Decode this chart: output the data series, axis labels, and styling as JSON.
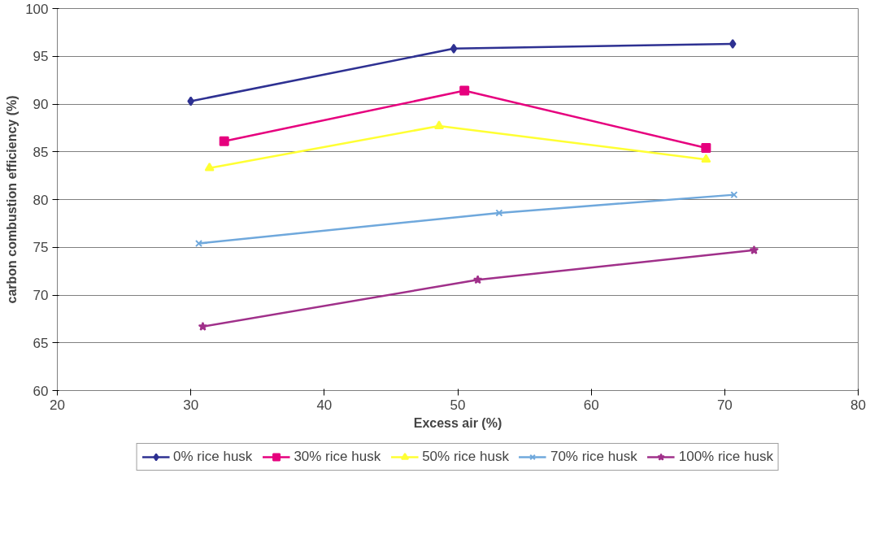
{
  "chart_data": {
    "type": "line",
    "xlabel": "Excess air (%)",
    "ylabel": "carbon combustion efficiency (%)",
    "xlim": [
      20,
      80
    ],
    "xticks": [
      20,
      30,
      40,
      50,
      60,
      70,
      80
    ],
    "ylim": [
      60,
      100
    ],
    "yticks": [
      60,
      65,
      70,
      75,
      80,
      85,
      90,
      95,
      100
    ],
    "grid": "y",
    "legend": "bottom",
    "line_style": "solid",
    "series": [
      {
        "name": "0% rice husk",
        "color": "#2e3192",
        "marker": "diamond",
        "x": [
          30.0,
          49.7,
          70.6
        ],
        "values": [
          90.3,
          95.8,
          96.3
        ]
      },
      {
        "name": "30% rice husk",
        "color": "#e6007e",
        "marker": "square",
        "x": [
          32.5,
          50.5,
          68.6
        ],
        "values": [
          86.1,
          91.4,
          85.4
        ]
      },
      {
        "name": "50% rice husk",
        "color": "#ffff33",
        "marker": "triangle",
        "x": [
          31.4,
          48.6,
          68.6
        ],
        "values": [
          83.3,
          87.7,
          84.2
        ]
      },
      {
        "name": "70% rice husk",
        "color": "#6fa8dc",
        "marker": "cross",
        "x": [
          30.6,
          53.1,
          70.7
        ],
        "values": [
          75.4,
          78.6,
          80.5
        ]
      },
      {
        "name": "100% rice husk",
        "color": "#a0308a",
        "marker": "star",
        "x": [
          30.9,
          51.5,
          72.2
        ],
        "values": [
          66.7,
          71.6,
          74.7
        ]
      }
    ]
  }
}
